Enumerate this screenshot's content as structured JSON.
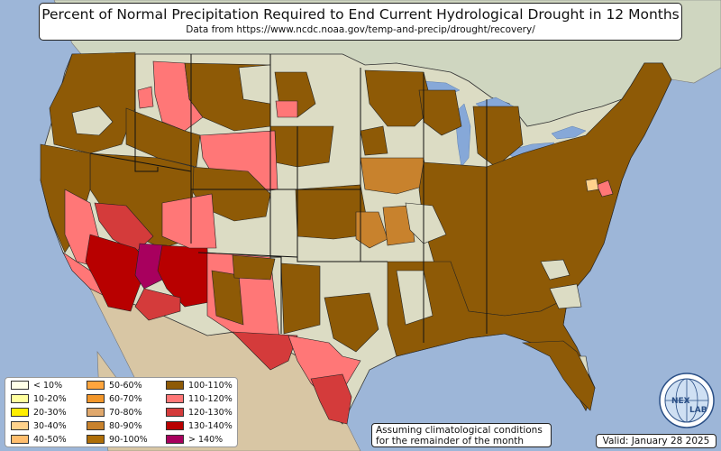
{
  "title": "Percent of Normal Precipitation Required to End Current Hydrological Drought in 12 Months",
  "subtitle": "Data from https://www.ncdc.noaa.gov/temp-and-precip/drought/recovery/",
  "note": {
    "line1": "Assuming climatological conditions",
    "line2": "for the remainder of the month"
  },
  "valid": "Valid: January 28 2025",
  "logo": {
    "icon": "nexlab-globe-logo",
    "text_left": "NEX",
    "text_right": "LAB"
  },
  "legend": {
    "items": [
      {
        "label": "< 10%",
        "color": "#ffffe8"
      },
      {
        "label": "10-20%",
        "color": "#ffff9e"
      },
      {
        "label": "20-30%",
        "color": "#ffee00"
      },
      {
        "label": "30-40%",
        "color": "#ffd28c"
      },
      {
        "label": "40-50%",
        "color": "#ffbe6e"
      },
      {
        "label": "50-60%",
        "color": "#ffa53d"
      },
      {
        "label": "60-70%",
        "color": "#f2962a"
      },
      {
        "label": "70-80%",
        "color": "#e0a86c"
      },
      {
        "label": "80-90%",
        "color": "#c8822d"
      },
      {
        "label": "90-100%",
        "color": "#ae6e08"
      },
      {
        "label": "100-110%",
        "color": "#8e5a06"
      },
      {
        "label": "110-120%",
        "color": "#ff7777"
      },
      {
        "label": "120-130%",
        "color": "#d43b3b"
      },
      {
        "label": "130-140%",
        "color": "#b80000"
      },
      {
        "label": "> 140%",
        "color": "#a8005e"
      }
    ]
  },
  "colors": {
    "ocean": "#9db6d8",
    "land": "#dcdcc4",
    "canada": "#cfd6c0",
    "mexico": "#d8c6a4",
    "lakes": "#86a8d8"
  }
}
